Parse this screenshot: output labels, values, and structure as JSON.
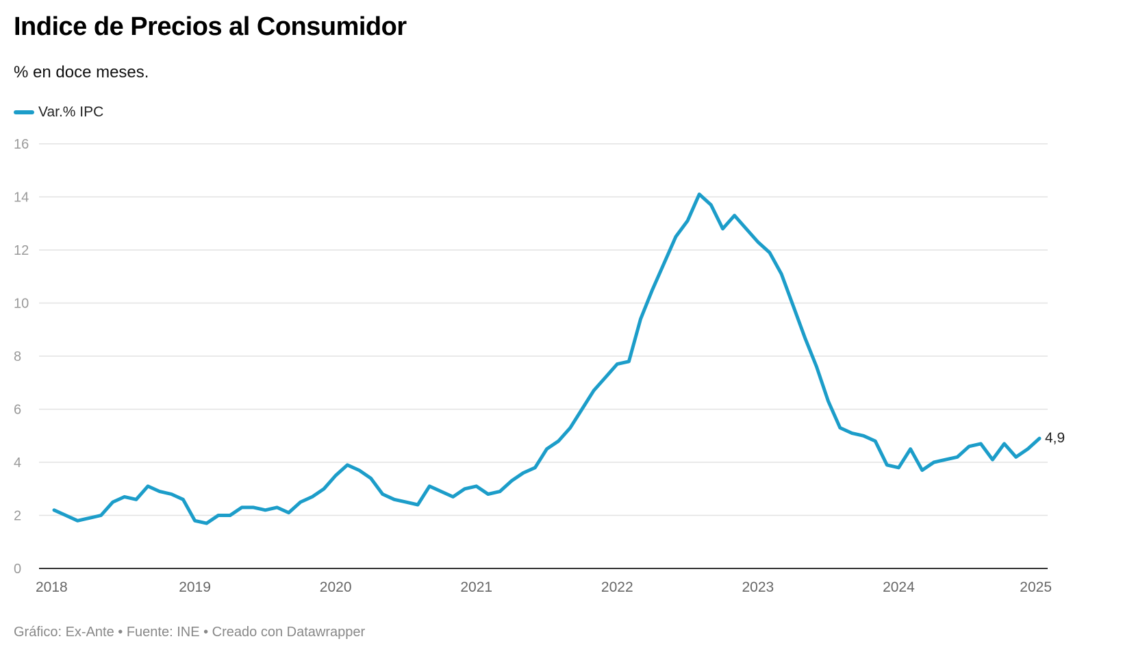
{
  "header": {
    "title": "Indice de Precios al Consumidor",
    "subtitle": "% en doce meses."
  },
  "legend": {
    "label": "Var.% IPC"
  },
  "footer": {
    "text": "Gráfico: Ex-Ante • Fuente: INE • Creado con Datawrapper"
  },
  "colors": {
    "line": "#1c9dc9",
    "grid": "#e2e2e2",
    "axis": "#333333"
  },
  "chart_data": {
    "type": "line",
    "title": "Indice de Precios al Consumidor",
    "subtitle": "% en doce meses.",
    "xlabel": "",
    "ylabel": "",
    "ylim": [
      0,
      16
    ],
    "yticks": [
      0,
      2,
      4,
      6,
      8,
      10,
      12,
      14,
      16
    ],
    "xticks": [
      "2018",
      "2019",
      "2020",
      "2021",
      "2022",
      "2023",
      "2024",
      "2025"
    ],
    "xlim": [
      "2018-01",
      "2025-01"
    ],
    "grid": true,
    "legend_position": "top-left",
    "end_label": "4,9",
    "series": [
      {
        "name": "Var.% IPC",
        "x": [
          "2018-01",
          "2018-02",
          "2018-03",
          "2018-04",
          "2018-05",
          "2018-06",
          "2018-07",
          "2018-08",
          "2018-09",
          "2018-10",
          "2018-11",
          "2018-12",
          "2019-01",
          "2019-02",
          "2019-03",
          "2019-04",
          "2019-05",
          "2019-06",
          "2019-07",
          "2019-08",
          "2019-09",
          "2019-10",
          "2019-11",
          "2019-12",
          "2020-01",
          "2020-02",
          "2020-03",
          "2020-04",
          "2020-05",
          "2020-06",
          "2020-07",
          "2020-08",
          "2020-09",
          "2020-10",
          "2020-11",
          "2020-12",
          "2021-01",
          "2021-02",
          "2021-03",
          "2021-04",
          "2021-05",
          "2021-06",
          "2021-07",
          "2021-08",
          "2021-09",
          "2021-10",
          "2021-11",
          "2021-12",
          "2022-01",
          "2022-02",
          "2022-03",
          "2022-04",
          "2022-05",
          "2022-06",
          "2022-07",
          "2022-08",
          "2022-09",
          "2022-10",
          "2022-11",
          "2022-12",
          "2023-01",
          "2023-02",
          "2023-03",
          "2023-04",
          "2023-05",
          "2023-06",
          "2023-07",
          "2023-08",
          "2023-09",
          "2023-10",
          "2023-11",
          "2023-12",
          "2024-01",
          "2024-02",
          "2024-03",
          "2024-04",
          "2024-05",
          "2024-06",
          "2024-07",
          "2024-08",
          "2024-09",
          "2024-10",
          "2024-11",
          "2024-12",
          "2025-01"
        ],
        "values": [
          2.2,
          2.0,
          1.8,
          1.9,
          2.0,
          2.5,
          2.7,
          2.6,
          3.1,
          2.9,
          2.8,
          2.6,
          1.8,
          1.7,
          2.0,
          2.0,
          2.3,
          2.3,
          2.2,
          2.3,
          2.1,
          2.5,
          2.7,
          3.0,
          3.5,
          3.9,
          3.7,
          3.4,
          2.8,
          2.6,
          2.5,
          2.4,
          3.1,
          2.9,
          2.7,
          3.0,
          3.1,
          2.8,
          2.9,
          3.3,
          3.6,
          3.8,
          4.5,
          4.8,
          5.3,
          6.0,
          6.7,
          7.2,
          7.7,
          7.8,
          9.4,
          10.5,
          11.5,
          12.5,
          13.1,
          14.1,
          13.7,
          12.8,
          13.3,
          12.8,
          12.3,
          11.9,
          11.1,
          9.9,
          8.7,
          7.6,
          6.3,
          5.3,
          5.1,
          5.0,
          4.8,
          3.9,
          3.8,
          4.5,
          3.7,
          4.0,
          4.1,
          4.2,
          4.6,
          4.7,
          4.1,
          4.7,
          4.2,
          4.5,
          4.9
        ]
      }
    ]
  }
}
